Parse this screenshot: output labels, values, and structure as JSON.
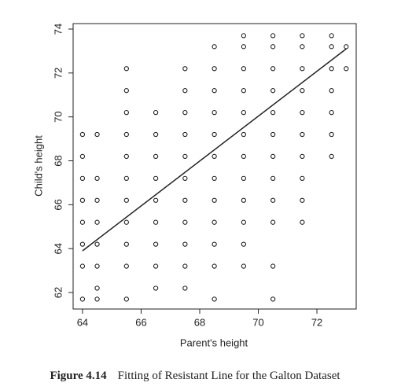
{
  "chart_data": {
    "type": "scatter",
    "x_label": "Parent's height",
    "y_label": "Child's height",
    "xlim": [
      63.68,
      73.34
    ],
    "ylim": [
      61.25,
      74.25
    ],
    "xticks": [
      64,
      66,
      68,
      70,
      72
    ],
    "yticks": [
      62,
      64,
      66,
      68,
      70,
      72,
      74
    ],
    "color": "#222",
    "series": [
      {
        "x": [
          64,
          64,
          64,
          64,
          64,
          64,
          64,
          64,
          64.5,
          64.5,
          64.5,
          64.5,
          64.5,
          64.5,
          64.5,
          64.5,
          65.5,
          65.5,
          65.5,
          65.5,
          65.5,
          65.5,
          65.5,
          65.5,
          65.5,
          65.5,
          65.5,
          66.5,
          66.5,
          66.5,
          66.5,
          66.5,
          66.5,
          66.5,
          66.5,
          66.5,
          67.5,
          67.5,
          67.5,
          67.5,
          67.5,
          67.5,
          67.5,
          67.5,
          67.5,
          67.5,
          67.5,
          68.5,
          68.5,
          68.5,
          68.5,
          68.5,
          68.5,
          68.5,
          68.5,
          68.5,
          68.5,
          68.5,
          68.5,
          69.5,
          69.5,
          69.5,
          69.5,
          69.5,
          69.5,
          69.5,
          69.5,
          69.5,
          69.5,
          69.5,
          69.5,
          70.5,
          70.5,
          70.5,
          70.5,
          70.5,
          70.5,
          70.5,
          70.5,
          70.5,
          70.5,
          70.5,
          70.5,
          71.5,
          71.5,
          71.5,
          71.5,
          71.5,
          71.5,
          71.5,
          71.5,
          71.5,
          71.5,
          72.5,
          72.5,
          72.5,
          72.5,
          72.5,
          72.5,
          72.5,
          73,
          73
        ],
        "values": [
          61.7,
          63.2,
          64.2,
          65.2,
          66.2,
          67.2,
          68.2,
          69.2,
          61.7,
          62.2,
          63.2,
          64.2,
          65.2,
          66.2,
          67.2,
          69.2,
          61.7,
          63.2,
          64.2,
          65.2,
          66.2,
          67.2,
          68.2,
          69.2,
          70.2,
          71.2,
          72.2,
          62.2,
          63.2,
          64.2,
          65.2,
          66.2,
          67.2,
          68.2,
          69.2,
          70.2,
          62.2,
          63.2,
          64.2,
          65.2,
          66.2,
          67.2,
          68.2,
          69.2,
          70.2,
          71.2,
          72.2,
          61.7,
          63.2,
          64.2,
          65.2,
          66.2,
          67.2,
          68.2,
          69.2,
          70.2,
          71.2,
          72.2,
          73.2,
          63.2,
          64.2,
          65.2,
          66.2,
          67.2,
          68.2,
          69.2,
          70.2,
          71.2,
          72.2,
          73.2,
          73.7,
          61.7,
          63.2,
          65.2,
          66.2,
          67.2,
          68.2,
          69.2,
          70.2,
          71.2,
          72.2,
          73.2,
          73.7,
          65.2,
          66.2,
          67.2,
          68.2,
          69.2,
          70.2,
          71.2,
          72.2,
          73.2,
          73.7,
          68.2,
          69.2,
          70.2,
          71.2,
          72.2,
          73.2,
          73.7,
          72.2,
          73.2
        ]
      }
    ],
    "fit_line": {
      "x": [
        64,
        73
      ],
      "values": [
        63.9,
        73.1
      ]
    },
    "caption_label": "Figure 4.14",
    "caption_text": "Fitting of Resistant Line for the Galton Dataset"
  }
}
